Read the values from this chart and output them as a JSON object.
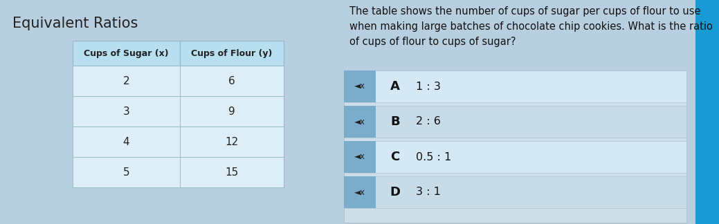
{
  "title": "Equivalent Ratios",
  "title_fontsize": 15,
  "title_fontweight": "normal",
  "title_color": "#222222",
  "background_color": "#b8cfe0",
  "question_text": "The table shows the number of cups of sugar per cups of flour to use\nwhen making large batches of chocolate chip cookies. What is the ratio\nof cups of flour to cups of sugar?",
  "question_fontsize": 10.5,
  "table_header": [
    "Cups of Sugar (x)",
    "Cups of Flour (y)"
  ],
  "table_data": [
    [
      "2",
      "6"
    ],
    [
      "3",
      "9"
    ],
    [
      "4",
      "12"
    ],
    [
      "5",
      "15"
    ]
  ],
  "table_header_bg": "#b8dff0",
  "table_cell_bg": "#ddeef8",
  "table_border_color": "#99bbcc",
  "answer_labels": [
    "A",
    "B",
    "C",
    "D"
  ],
  "answer_texts": [
    "1 : 3",
    "2 : 6",
    "0.5 : 1",
    "3 : 1"
  ],
  "answer_panel_bg": "#cddee8",
  "answer_row_bg_a": "#d5e8f5",
  "answer_row_bg_b": "#c8dce8",
  "speaker_box_bg": "#7aaccc",
  "right_bar1_color": "#1a9ad4",
  "right_bar2_color": "#3bbfe0",
  "right_bar3_color": "#1a9ad4"
}
